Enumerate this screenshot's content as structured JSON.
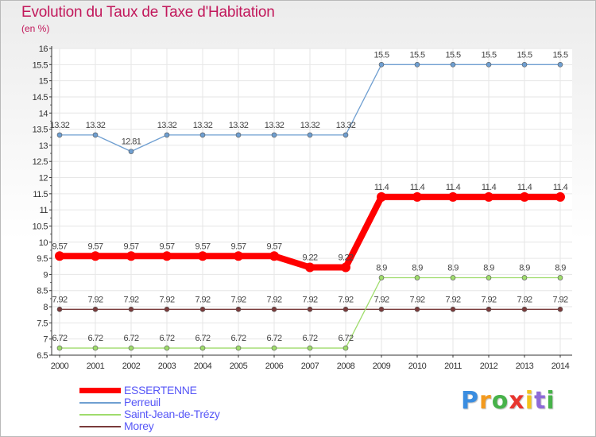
{
  "title": "Evolution du Taux de Taxe d'Habitation",
  "unit_label": "(en %)",
  "logo": {
    "text": "Proxiti",
    "letters": [
      "P",
      "r",
      "o",
      "x",
      "i",
      "t",
      "i"
    ]
  },
  "chart_data": {
    "type": "line",
    "title": "Evolution du Taux de Taxe d'Habitation",
    "ylabel": "(en %)",
    "xlabel": "",
    "ylim": [
      6.5,
      16
    ],
    "ytick_step": 0.5,
    "ytick_labels": [
      "6.5",
      "7",
      "7.5",
      "8",
      "8.5",
      "9",
      "9.5",
      "10",
      "10.5",
      "11",
      "11.5",
      "12",
      "12.5",
      "13",
      "13.5",
      "14",
      "14.5",
      "15",
      "15.5",
      "16"
    ],
    "categories": [
      "2000",
      "2001",
      "2002",
      "2003",
      "2004",
      "2005",
      "2006",
      "2007",
      "2008",
      "2009",
      "2010",
      "2011",
      "2012",
      "2013",
      "2014"
    ],
    "grid": true,
    "legend_position": "bottom-left",
    "series": [
      {
        "name": "ESSERTENNE",
        "color": "#ff0000",
        "values": [
          9.57,
          9.57,
          9.57,
          9.57,
          9.57,
          9.57,
          9.57,
          9.22,
          9.22,
          11.4,
          11.4,
          11.4,
          11.4,
          11.4,
          11.4
        ],
        "labels": [
          "9.57",
          "9.57",
          "9.57",
          "9.57",
          "9.57",
          "9.57",
          "9.57",
          "9.22",
          "9.22",
          "11.4",
          "11.4",
          "11.4",
          "11.4",
          "11.4",
          "11.4"
        ]
      },
      {
        "name": "Perreuil",
        "color": "#6f9fd1",
        "values": [
          13.32,
          13.32,
          12.81,
          13.32,
          13.32,
          13.32,
          13.32,
          13.32,
          13.32,
          15.5,
          15.5,
          15.5,
          15.5,
          15.5,
          15.5
        ],
        "labels": [
          "13.32",
          "13.32",
          "12.81",
          "13.32",
          "13.32",
          "13.32",
          "13.32",
          "13.32",
          "13.32",
          "15.5",
          "15.5",
          "15.5",
          "15.5",
          "15.5",
          "15.5"
        ]
      },
      {
        "name": "Saint-Jean-de-Trézy",
        "color": "#9fdc6c",
        "values": [
          6.72,
          6.72,
          6.72,
          6.72,
          6.72,
          6.72,
          6.72,
          6.72,
          6.72,
          8.9,
          8.9,
          8.9,
          8.9,
          8.9,
          8.9
        ],
        "labels": [
          "6.72",
          "6.72",
          "6.72",
          "6.72",
          "6.72",
          "6.72",
          "6.72",
          "6.72",
          "6.72",
          "8.9",
          "8.9",
          "8.9",
          "8.9",
          "8.9",
          "8.9"
        ]
      },
      {
        "name": "Morey",
        "color": "#7a3b3b",
        "values": [
          7.92,
          7.92,
          7.92,
          7.92,
          7.92,
          7.92,
          7.92,
          7.92,
          7.92,
          7.92,
          7.92,
          7.92,
          7.92,
          7.92,
          7.92
        ],
        "labels": [
          "7.92",
          "7.92",
          "7.92",
          "7.92",
          "7.92",
          "7.92",
          "7.92",
          "7.92",
          "7.92",
          "7.92",
          "7.92",
          "7.92",
          "7.92",
          "7.92",
          "7.92"
        ]
      }
    ]
  }
}
